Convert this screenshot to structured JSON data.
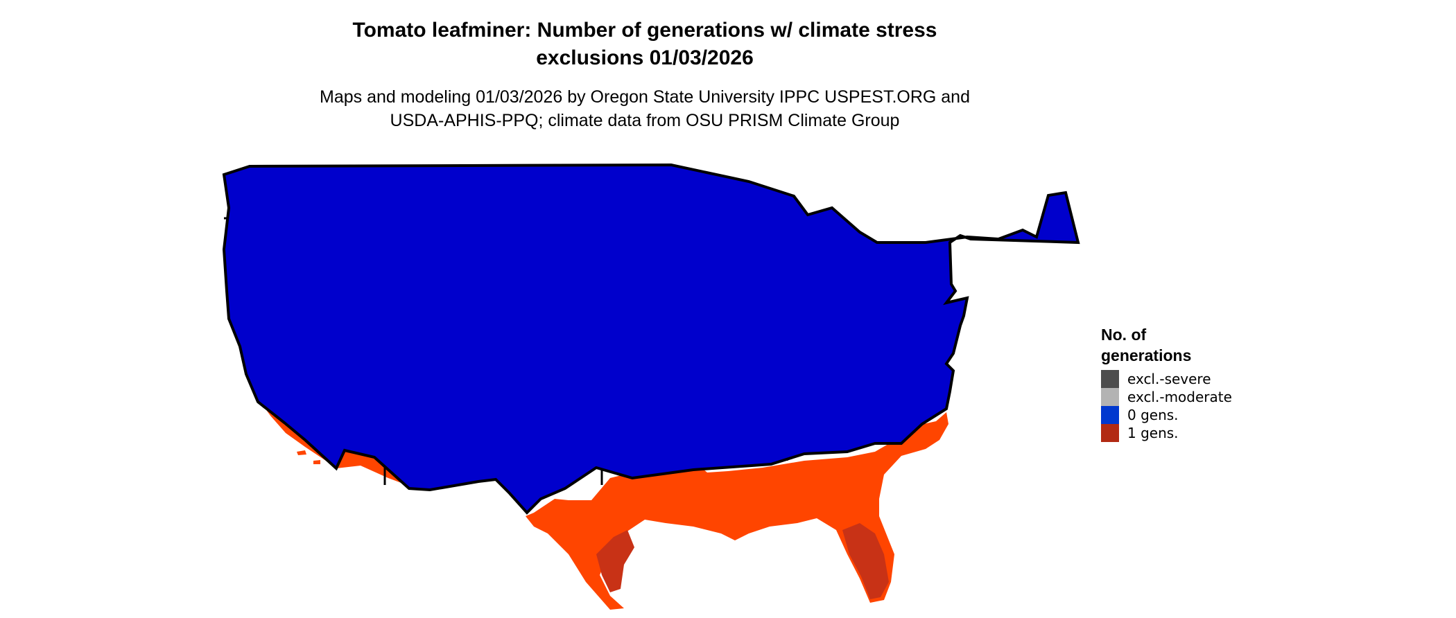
{
  "title": {
    "line1": "Tomato leafminer: Number of generations w/ climate stress",
    "line2": "exclusions 01/03/2026"
  },
  "subtitle": {
    "line1": "Maps and modeling 01/03/2026 by Oregon State University IPPC USPEST.ORG and",
    "line2": "USDA-APHIS-PPQ; climate data from OSU PRISM Climate Group"
  },
  "legend": {
    "title_line1": "No. of",
    "title_line2": "generations",
    "items": [
      {
        "label": "excl.-severe",
        "color": "#4d4d4d"
      },
      {
        "label": "excl.-moderate",
        "color": "#b3b3b3"
      },
      {
        "label": "0 gens.",
        "color": "#0038cf"
      },
      {
        "label": "1 gens.",
        "color": "#b22a13"
      }
    ]
  },
  "map_colors": {
    "zero_gens_fill": "#0000cc",
    "one_gen_light": "#ff4500",
    "one_gen_dark": "#c83216",
    "border": "#000000"
  }
}
